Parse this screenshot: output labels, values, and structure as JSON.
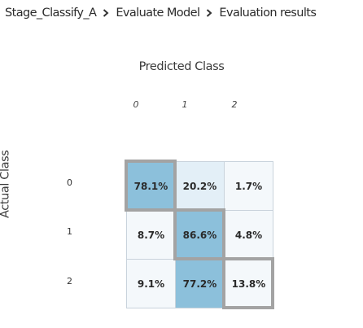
{
  "breadcrumb": {
    "items": [
      "Stage_Classify_A",
      "Evaluate Model",
      "Evaluation results"
    ]
  },
  "matrix": {
    "predicted_title": "Predicted Class",
    "actual_title": "Actual Class",
    "column_labels": [
      "0",
      "1",
      "2"
    ],
    "row_labels": [
      "0",
      "1",
      "2"
    ],
    "rows": [
      [
        78.1,
        20.2,
        1.7
      ],
      [
        8.7,
        86.6,
        4.8
      ],
      [
        9.1,
        77.2,
        13.8
      ]
    ],
    "display": [
      [
        "78.1%",
        "20.2%",
        "1.7%"
      ],
      [
        "8.7%",
        "86.6%",
        "4.8%"
      ],
      [
        "9.1%",
        "77.2%",
        "13.8%"
      ]
    ],
    "colors": {
      "high": "#8cc0db",
      "mid_light": "#e3eff7",
      "low": "#f4f8fb",
      "diagonal_outline": "#a3a3a3"
    }
  }
}
